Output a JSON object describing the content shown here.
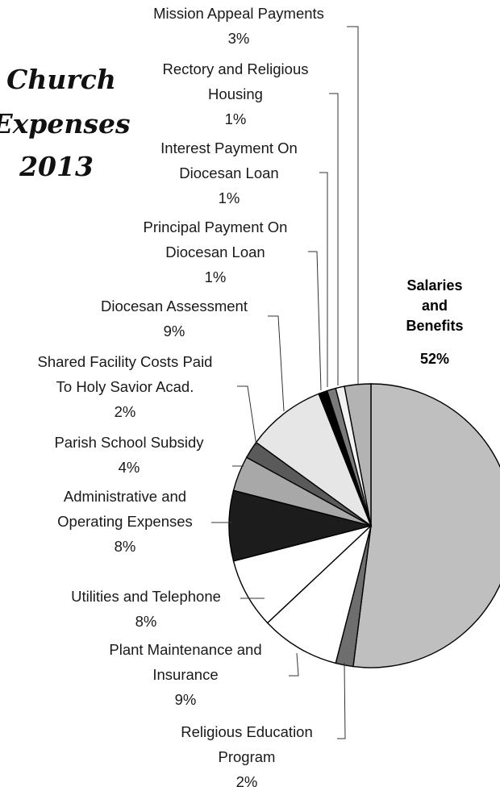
{
  "chart_data": {
    "type": "pie",
    "title": [
      "Church",
      "Expenses",
      "2013"
    ],
    "slices": [
      {
        "label": [
          "Salaries",
          "and",
          "Benefits"
        ],
        "pct_label": "52%",
        "value": 52,
        "color": "#bfbfbf",
        "bold": true
      },
      {
        "label": [
          "Religious Education",
          "Program"
        ],
        "pct_label": "2%",
        "value": 2,
        "color": "#6e6e6e"
      },
      {
        "label": [
          "Plant Maintenance and",
          "Insurance"
        ],
        "pct_label": "9%",
        "value": 9,
        "color": "#ffffff"
      },
      {
        "label": [
          "Utilities and Telephone"
        ],
        "pct_label": "8%",
        "value": 8,
        "color": "#ffffff"
      },
      {
        "label": [
          "Administrative and",
          "Operating Expenses"
        ],
        "pct_label": "8%",
        "value": 8,
        "color": "#1c1c1c"
      },
      {
        "label": [
          "Parish School Subsidy"
        ],
        "pct_label": "4%",
        "value": 4,
        "color": "#a8a8a8"
      },
      {
        "label": [
          "Shared Facility Costs Paid",
          "To Holy Savior Acad."
        ],
        "pct_label": "2%",
        "value": 2,
        "color": "#5a5a5a"
      },
      {
        "label": [
          "Diocesan Assessment"
        ],
        "pct_label": "9%",
        "value": 9,
        "color": "#e6e6e6"
      },
      {
        "label": [
          "Principal Payment On",
          "Diocesan Loan"
        ],
        "pct_label": "1%",
        "value": 1,
        "color": "#000000"
      },
      {
        "label": [
          "Interest Payment On",
          "Diocesan Loan"
        ],
        "pct_label": "1%",
        "value": 1,
        "color": "#7a7a7a"
      },
      {
        "label": [
          "Rectory and Religious",
          "Housing"
        ],
        "pct_label": "1%",
        "value": 1,
        "color": "#f2f2f2"
      },
      {
        "label": [
          "Mission Appeal Payments"
        ],
        "pct_label": "3%",
        "value": 3,
        "color": "#b3b3b3"
      }
    ]
  }
}
